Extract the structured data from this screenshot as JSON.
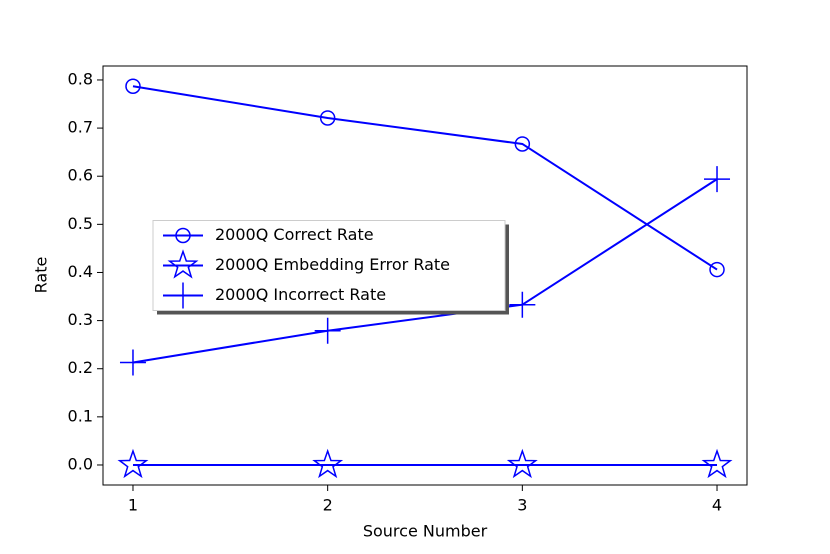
{
  "chart_data": {
    "type": "line",
    "x_label": "Source Number",
    "x_label_color": "#0000ff",
    "y_label": "Rate",
    "x": [
      1,
      2,
      3,
      4
    ],
    "series": [
      {
        "name": "2000Q Correct Rate",
        "color": "#0000ff",
        "marker": "circle",
        "values": [
          0.787,
          0.721,
          0.667,
          0.406
        ]
      },
      {
        "name": "2000Q Embedding Error Rate",
        "color": "#0000ff",
        "marker": "star",
        "values": [
          0,
          0,
          0,
          0
        ]
      },
      {
        "name": "2000Q Incorrect Rate",
        "color": "#0000ff",
        "marker": "plus",
        "values": [
          0.213,
          0.279,
          0.333,
          0.594
        ]
      }
    ],
    "xlim": [
      0.846,
      4.154
    ],
    "ylim": [
      -0.0416,
      0.829
    ],
    "xticks": [
      1,
      2,
      3,
      4
    ],
    "yticks": [
      {
        "value": 0,
        "label": "0.0"
      },
      0.1,
      0.2,
      0.3,
      0.4,
      0.5,
      0.6,
      0.7,
      0.8
    ],
    "grid": false,
    "legend": "center left"
  }
}
